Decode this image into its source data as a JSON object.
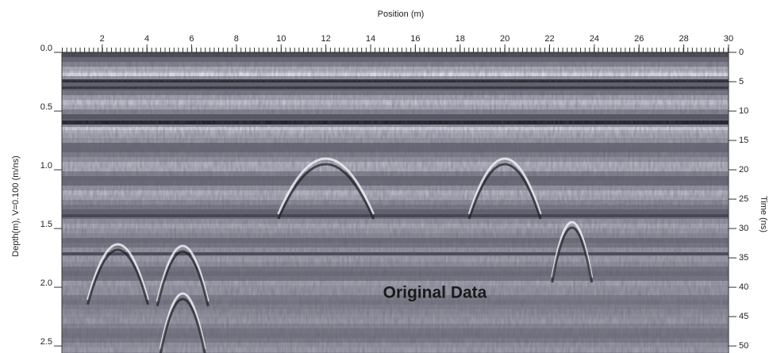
{
  "chart_data": {
    "type": "radargram",
    "x_label": "Position (m)",
    "y_label": "Depth(m), V=0.100 (m/ns)",
    "y2_label": "Time (ns)",
    "annotation": "Original Data",
    "xlim": [
      0.2,
      30
    ],
    "xticks": [
      2,
      4,
      6,
      8,
      10,
      12,
      14,
      16,
      18,
      20,
      22,
      24,
      26,
      28,
      30
    ],
    "ylim": [
      0,
      2.56
    ],
    "yticks": [
      {
        "value": 0,
        "label": "0.0"
      },
      {
        "value": 0.5,
        "label": "0.5"
      },
      {
        "value": 1,
        "label": "1.0"
      },
      {
        "value": 1.5,
        "label": "1.5"
      },
      {
        "value": 2,
        "label": "2.0"
      },
      {
        "value": 2.5,
        "label": "2.5"
      }
    ],
    "y2lim": [
      0,
      51.2
    ],
    "y2ticks": [
      0,
      5,
      10,
      15,
      20,
      25,
      30,
      35,
      40,
      45,
      50
    ]
  }
}
